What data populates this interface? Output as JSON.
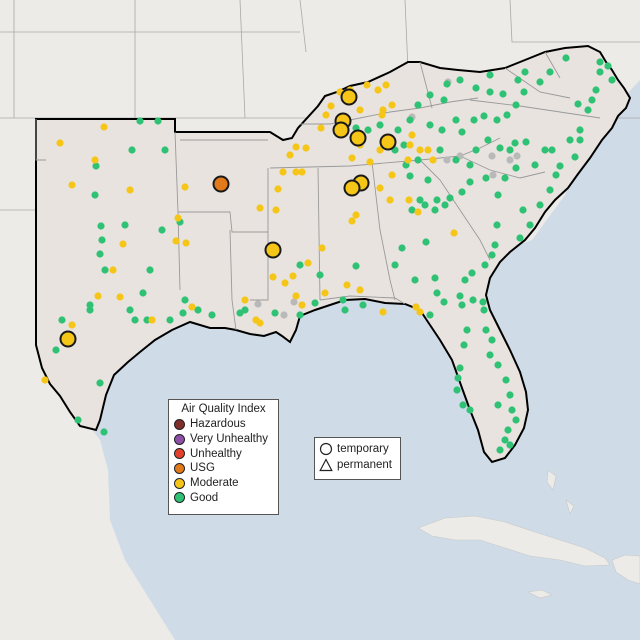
{
  "legend": {
    "title": "Air Quality Index",
    "categories": [
      {
        "label": "Hazardous",
        "color": "#7e2f2a"
      },
      {
        "label": "Very Unhealthy",
        "color": "#8e4fa6"
      },
      {
        "label": "Unhealthy",
        "color": "#e2402b"
      },
      {
        "label": "USG",
        "color": "#e07a1b"
      },
      {
        "label": "Moderate",
        "color": "#f5c517"
      },
      {
        "label": "Good",
        "color": "#2fc275"
      }
    ]
  },
  "type_legend": {
    "temporary": "temporary",
    "permanent": "permanent"
  },
  "colors": {
    "ocean": "#cfdce8",
    "land": "#e8e3df",
    "outside_land": "#ecebe8",
    "state_border": "#a9a9a9",
    "region_outline": "#000000",
    "nodata_station": "#b9b9b9"
  },
  "stations_large": [
    {
      "category": "Moderate"
    },
    {
      "category": "Moderate"
    },
    {
      "category": "Moderate"
    },
    {
      "category": "Moderate"
    },
    {
      "category": "Moderate"
    },
    {
      "category": "Moderate"
    },
    {
      "category": "Moderate"
    },
    {
      "category": "Moderate"
    },
    {
      "category": "USG"
    },
    {
      "category": "Moderate"
    },
    {
      "category": "Moderate"
    }
  ]
}
